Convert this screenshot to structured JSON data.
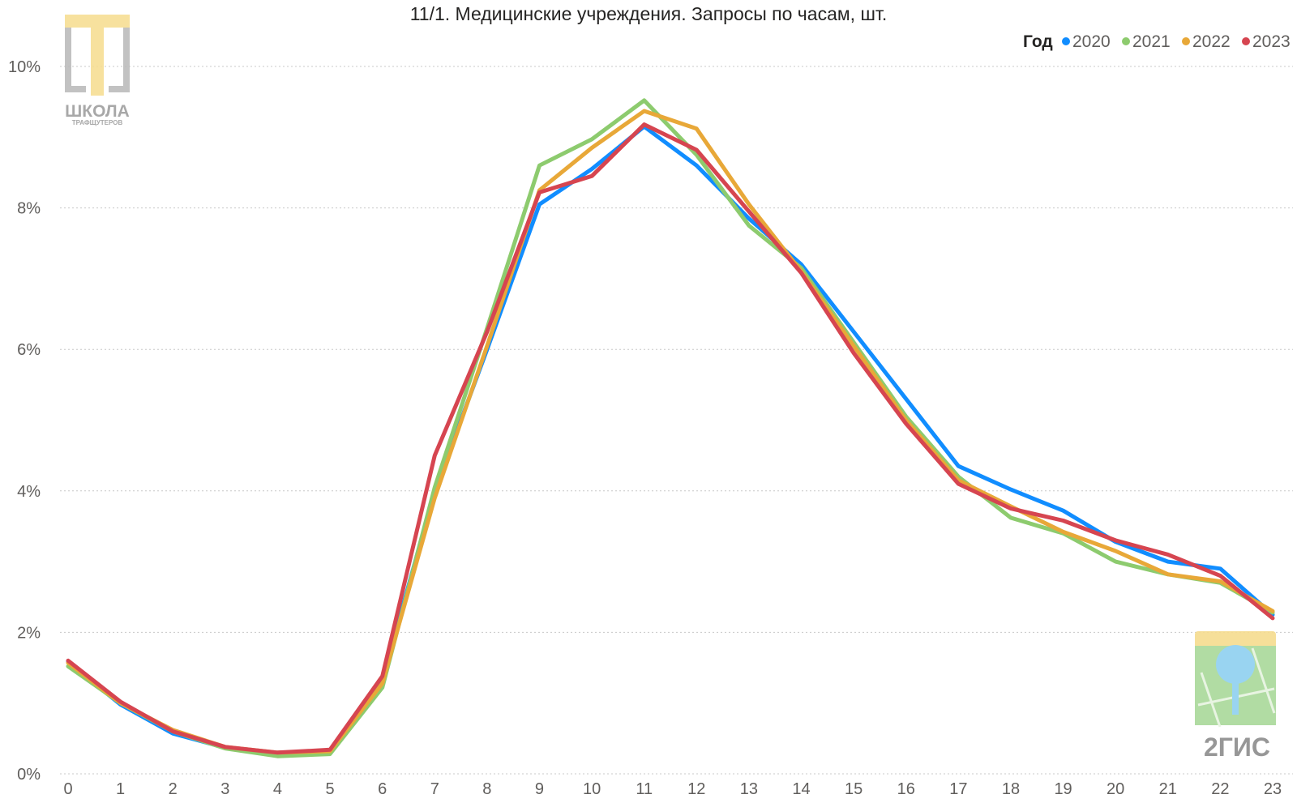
{
  "chart_data": {
    "type": "line",
    "title": "11/1. Медицинские учреждения. Запросы по часам, шт.",
    "xlabel": "",
    "ylabel": "",
    "legend_title": "Год",
    "legend_position": "top-right",
    "grid": true,
    "x": [
      0,
      1,
      2,
      3,
      4,
      5,
      6,
      7,
      8,
      9,
      10,
      11,
      12,
      13,
      14,
      15,
      16,
      17,
      18,
      19,
      20,
      21,
      22,
      23
    ],
    "y_ticks": [
      0,
      2,
      4,
      6,
      8,
      10
    ],
    "y_tick_labels": [
      "0%",
      "2%",
      "4%",
      "6%",
      "8%",
      "10%"
    ],
    "ylim": [
      0,
      10
    ],
    "series": [
      {
        "name": "2020",
        "color": "#118DFF",
        "values": [
          1.58,
          0.98,
          0.57,
          0.37,
          0.29,
          0.33,
          1.32,
          4.0,
          6.0,
          8.05,
          8.55,
          9.15,
          8.6,
          7.85,
          7.2,
          6.25,
          5.3,
          4.35,
          4.02,
          3.72,
          3.28,
          3.0,
          2.9,
          2.25
        ]
      },
      {
        "name": "2021",
        "color": "#8DCB6E",
        "values": [
          1.52,
          1.0,
          0.6,
          0.36,
          0.25,
          0.28,
          1.22,
          4.05,
          6.3,
          8.6,
          8.97,
          9.52,
          8.75,
          7.75,
          7.15,
          6.1,
          5.05,
          4.2,
          3.62,
          3.4,
          3.0,
          2.82,
          2.7,
          2.28
        ]
      },
      {
        "name": "2022",
        "color": "#E8A838",
        "values": [
          1.57,
          1.0,
          0.62,
          0.38,
          0.3,
          0.32,
          1.28,
          3.9,
          6.05,
          8.25,
          8.85,
          9.37,
          9.12,
          8.05,
          7.1,
          6.05,
          5.0,
          4.15,
          3.78,
          3.42,
          3.15,
          2.82,
          2.72,
          2.3
        ]
      },
      {
        "name": "2023",
        "color": "#D64550",
        "values": [
          1.6,
          1.02,
          0.6,
          0.38,
          0.3,
          0.34,
          1.38,
          4.5,
          6.25,
          8.22,
          8.45,
          9.18,
          8.82,
          7.95,
          7.08,
          5.95,
          4.95,
          4.1,
          3.75,
          3.58,
          3.3,
          3.1,
          2.8,
          2.2
        ]
      }
    ]
  },
  "logos": {
    "school": {
      "line1": "ШКОЛА",
      "line2": "ТРАФЩУТЕРОВ"
    },
    "gis": {
      "text": "2ГИС"
    }
  }
}
